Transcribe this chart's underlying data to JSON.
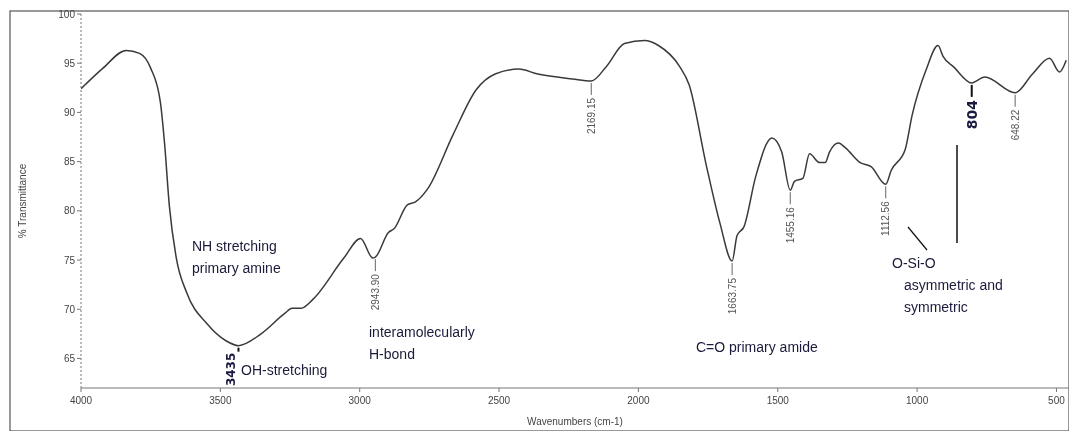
{
  "chart_data": {
    "type": "line",
    "xlabel": "Wavenumbers (cm-1)",
    "ylabel": "% Transmittance",
    "xlim": [
      4000,
      455
    ],
    "ylim": [
      62,
      100
    ],
    "xticks": [
      4000,
      3500,
      3000,
      2500,
      2000,
      1500,
      1000,
      500
    ],
    "yticks": [
      65,
      70,
      75,
      80,
      85,
      90,
      95,
      100
    ],
    "grid": false,
    "marker": "none",
    "line_style": "solid",
    "series": [
      {
        "color": "#3a3a3a",
        "x": [
          4000,
          3921,
          3838,
          3790,
          3750,
          3715,
          3700,
          3683,
          3658,
          3621,
          3547,
          3480,
          3435,
          3354,
          3268,
          3243,
          3210,
          3168,
          3057,
          2997,
          2953,
          2943.9,
          2897,
          2876,
          2829,
          2800,
          2757,
          2664,
          2582,
          2514,
          2429,
          2361,
          2236,
          2169.15,
          2114,
          2050,
          1978,
          1928,
          1853,
          1818,
          1757,
          1707,
          1663.75,
          1646,
          1621,
          1579,
          1521,
          1486,
          1455.16,
          1440,
          1410,
          1386,
          1350,
          1330,
          1314,
          1282,
          1257,
          1204,
          1165,
          1112.56,
          1093,
          1043,
          1018,
          968,
          925,
          907,
          868,
          804,
          757,
          648.22,
          586,
          525,
          489,
          465
        ],
        "values": [
          92.4,
          94.5,
          96.3,
          96.0,
          94.5,
          91.0,
          86.8,
          80.5,
          75.2,
          71.7,
          68.5,
          66.8,
          66.3,
          67.5,
          69.6,
          70.1,
          70.1,
          71.0,
          75.2,
          77.2,
          75.2,
          75.3,
          77.8,
          78.2,
          80.6,
          80.9,
          82.2,
          87.8,
          92.3,
          93.9,
          94.4,
          93.9,
          93.4,
          93.2,
          94.7,
          97.0,
          97.3,
          96.8,
          94.7,
          92.8,
          84.7,
          78.7,
          74.9,
          77.5,
          78.4,
          83.5,
          87.4,
          86.0,
          82.1,
          83.0,
          83.3,
          85.8,
          84.9,
          84.9,
          86.0,
          86.9,
          86.4,
          84.9,
          84.5,
          82.7,
          84.1,
          86.2,
          89.7,
          94.3,
          96.8,
          95.7,
          94.6,
          93.0,
          93.6,
          92.0,
          93.9,
          95.5,
          94.1,
          95.3
        ]
      }
    ],
    "annotations": [
      {
        "text": "3435",
        "x": 3435,
        "y": 66.3
      },
      {
        "text": "2943.90",
        "x": 2943.9,
        "y": 75.3
      },
      {
        "text": "2169.15",
        "x": 2169.15,
        "y": 93.2
      },
      {
        "text": "1663.75",
        "x": 1663.75,
        "y": 74.9
      },
      {
        "text": "1455.16",
        "x": 1455.16,
        "y": 82.1
      },
      {
        "text": "1112.56",
        "x": 1112.56,
        "y": 82.7
      },
      {
        "text": "804",
        "x": 804,
        "y": 93.0
      },
      {
        "text": "648.22",
        "x": 648.22,
        "y": 92.0
      },
      "NH stretching\nprimary amine",
      "OH-stretching",
      "interamolecularly\nH-bond",
      "C=O primary amide",
      "O-Si-O\nasymmetric and\nsymmetric"
    ]
  }
}
